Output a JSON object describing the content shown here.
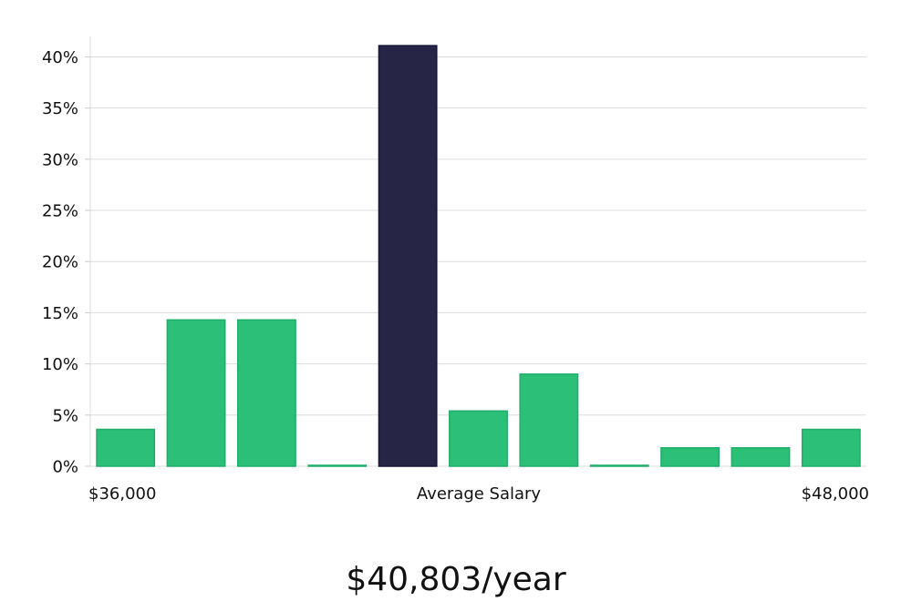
{
  "chart_data": {
    "type": "bar",
    "title": "",
    "xlabel": "",
    "ylabel": "",
    "ylim": [
      0,
      42
    ],
    "yticks": [
      0,
      5,
      10,
      15,
      20,
      25,
      30,
      35,
      40
    ],
    "ytick_labels": [
      "0%",
      "5%",
      "10%",
      "15%",
      "20%",
      "25%",
      "30%",
      "35%",
      "40%"
    ],
    "values": [
      3.6,
      14.3,
      14.3,
      0,
      41.1,
      5.4,
      9.0,
      0,
      1.8,
      1.8,
      3.6
    ],
    "highlight_index": 4,
    "grid": true,
    "x_labels": {
      "left": "$36,000",
      "center": "Average Salary",
      "right": "$48,000"
    },
    "colors": {
      "bar": "#2bbf78",
      "bar_border": "#1fae6a",
      "highlight": "#272546",
      "highlight_border": "#17153a",
      "grid": "#dddddd",
      "axis": "#cccccc",
      "text": "#111111"
    }
  },
  "summary": {
    "salary": "$40,803/year"
  }
}
